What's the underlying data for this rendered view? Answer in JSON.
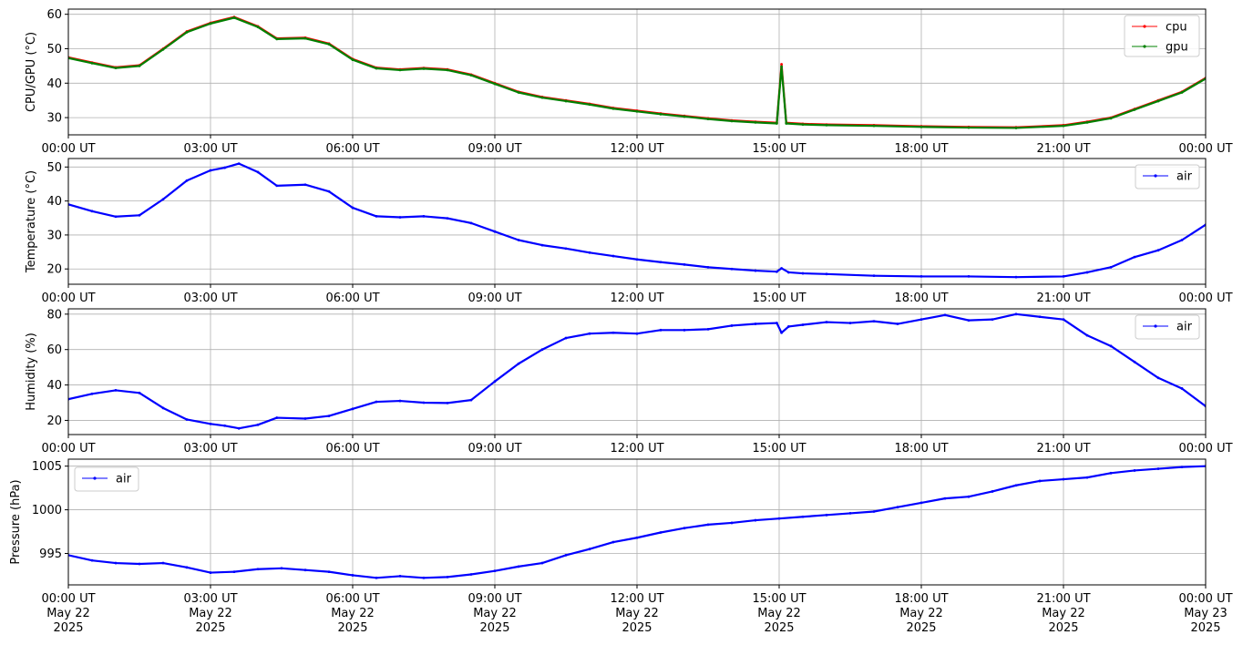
{
  "chart_data": [
    {
      "type": "line",
      "ylabel": "CPU/GPU (°C)",
      "ylim": [
        25,
        61.5
      ],
      "yticks": [
        30,
        40,
        50,
        60
      ],
      "legend": "top-right",
      "grid": true,
      "xticks": [
        "00:00 UT",
        "03:00 UT",
        "06:00 UT",
        "09:00 UT",
        "12:00 UT",
        "15:00 UT",
        "18:00 UT",
        "21:00 UT",
        "00:00 UT"
      ],
      "series": [
        {
          "name": "cpu",
          "color": "#ff0000",
          "points": [
            [
              0,
              47.5
            ],
            [
              0.5,
              46
            ],
            [
              1,
              44.6
            ],
            [
              1.5,
              45.2
            ],
            [
              2,
              50
            ],
            [
              2.5,
              55
            ],
            [
              3,
              57.5
            ],
            [
              3.5,
              59.2
            ],
            [
              4,
              56.5
            ],
            [
              4.4,
              53
            ],
            [
              5,
              53.2
            ],
            [
              5.5,
              51.5
            ],
            [
              6,
              47
            ],
            [
              6.5,
              44.5
            ],
            [
              7,
              44
            ],
            [
              7.5,
              44.4
            ],
            [
              8,
              44
            ],
            [
              8.5,
              42.5
            ],
            [
              9,
              40
            ],
            [
              9.5,
              37.5
            ],
            [
              10,
              36
            ],
            [
              10.5,
              35
            ],
            [
              11,
              34
            ],
            [
              11.5,
              32.8
            ],
            [
              12,
              32
            ],
            [
              12.5,
              31.2
            ],
            [
              13,
              30.5
            ],
            [
              13.5,
              29.8
            ],
            [
              14,
              29.2
            ],
            [
              14.5,
              28.8
            ],
            [
              14.95,
              28.5
            ],
            [
              15.05,
              45.5
            ],
            [
              15.15,
              28.5
            ],
            [
              15.5,
              28.2
            ],
            [
              16,
              28
            ],
            [
              17,
              27.8
            ],
            [
              18,
              27.5
            ],
            [
              19,
              27.3
            ],
            [
              20,
              27.2
            ],
            [
              21,
              27.8
            ],
            [
              21.5,
              28.8
            ],
            [
              22,
              30
            ],
            [
              22.5,
              32.5
            ],
            [
              23,
              35
            ],
            [
              23.5,
              37.5
            ],
            [
              24,
              41.5
            ]
          ]
        },
        {
          "name": "gpu",
          "color": "#008000",
          "points": [
            [
              0,
              47.3
            ],
            [
              0.5,
              45.8
            ],
            [
              1,
              44.4
            ],
            [
              1.5,
              45
            ],
            [
              2,
              49.8
            ],
            [
              2.5,
              54.8
            ],
            [
              3,
              57.3
            ],
            [
              3.5,
              59
            ],
            [
              4,
              56.3
            ],
            [
              4.4,
              52.8
            ],
            [
              5,
              53
            ],
            [
              5.5,
              51.3
            ],
            [
              6,
              46.8
            ],
            [
              6.5,
              44.3
            ],
            [
              7,
              43.8
            ],
            [
              7.5,
              44.2
            ],
            [
              8,
              43.8
            ],
            [
              8.5,
              42.3
            ],
            [
              9,
              39.8
            ],
            [
              9.5,
              37.3
            ],
            [
              10,
              35.8
            ],
            [
              10.5,
              34.8
            ],
            [
              11,
              33.8
            ],
            [
              11.5,
              32.6
            ],
            [
              12,
              31.8
            ],
            [
              12.5,
              31
            ],
            [
              13,
              30.3
            ],
            [
              13.5,
              29.6
            ],
            [
              14,
              29
            ],
            [
              14.5,
              28.6
            ],
            [
              14.95,
              28.3
            ],
            [
              15.05,
              44.8
            ],
            [
              15.15,
              28.3
            ],
            [
              15.5,
              28
            ],
            [
              16,
              27.8
            ],
            [
              17,
              27.6
            ],
            [
              18,
              27.3
            ],
            [
              19,
              27.1
            ],
            [
              20,
              27
            ],
            [
              21,
              27.6
            ],
            [
              21.5,
              28.6
            ],
            [
              22,
              29.8
            ],
            [
              22.5,
              32.3
            ],
            [
              23,
              34.8
            ],
            [
              23.5,
              37.3
            ],
            [
              24,
              41.3
            ]
          ]
        }
      ]
    },
    {
      "type": "line",
      "ylabel": "Temperature (°C)",
      "ylim": [
        15.5,
        52.5
      ],
      "yticks": [
        20,
        30,
        40,
        50
      ],
      "legend": "top-right",
      "grid": true,
      "xticks": [
        "00:00 UT",
        "03:00 UT",
        "06:00 UT",
        "09:00 UT",
        "12:00 UT",
        "15:00 UT",
        "18:00 UT",
        "21:00 UT",
        "00:00 UT"
      ],
      "series": [
        {
          "name": "air",
          "color": "#0000ff",
          "points": [
            [
              0,
              39
            ],
            [
              0.5,
              37
            ],
            [
              1,
              35.4
            ],
            [
              1.5,
              35.8
            ],
            [
              2,
              40.5
            ],
            [
              2.5,
              46
            ],
            [
              3,
              49
            ],
            [
              3.3,
              49.8
            ],
            [
              3.6,
              51
            ],
            [
              4,
              48.5
            ],
            [
              4.4,
              44.5
            ],
            [
              5,
              44.8
            ],
            [
              5.5,
              42.8
            ],
            [
              6,
              38
            ],
            [
              6.5,
              35.5
            ],
            [
              7,
              35.2
            ],
            [
              7.5,
              35.5
            ],
            [
              8,
              34.9
            ],
            [
              8.5,
              33.5
            ],
            [
              9,
              31
            ],
            [
              9.5,
              28.5
            ],
            [
              10,
              27
            ],
            [
              10.5,
              26
            ],
            [
              11,
              24.8
            ],
            [
              11.5,
              23.8
            ],
            [
              12,
              22.8
            ],
            [
              12.5,
              22
            ],
            [
              13,
              21.3
            ],
            [
              13.5,
              20.5
            ],
            [
              14,
              20
            ],
            [
              14.5,
              19.5
            ],
            [
              14.95,
              19.2
            ],
            [
              15.05,
              20.2
            ],
            [
              15.2,
              19
            ],
            [
              15.5,
              18.7
            ],
            [
              16,
              18.5
            ],
            [
              17,
              18
            ],
            [
              18,
              17.8
            ],
            [
              19,
              17.8
            ],
            [
              20,
              17.6
            ],
            [
              21,
              17.8
            ],
            [
              21.5,
              19
            ],
            [
              22,
              20.5
            ],
            [
              22.5,
              23.5
            ],
            [
              23,
              25.5
            ],
            [
              23.5,
              28.5
            ],
            [
              24,
              33
            ]
          ]
        }
      ]
    },
    {
      "type": "line",
      "ylabel": "Humidity (%)",
      "ylim": [
        12,
        83
      ],
      "yticks": [
        20,
        40,
        60,
        80
      ],
      "legend": "top-right",
      "grid": true,
      "xticks": [
        "00:00 UT",
        "03:00 UT",
        "06:00 UT",
        "09:00 UT",
        "12:00 UT",
        "15:00 UT",
        "18:00 UT",
        "21:00 UT",
        "00:00 UT"
      ],
      "series": [
        {
          "name": "air",
          "color": "#0000ff",
          "points": [
            [
              0,
              32
            ],
            [
              0.5,
              35
            ],
            [
              1,
              37
            ],
            [
              1.5,
              35.5
            ],
            [
              2,
              27
            ],
            [
              2.5,
              20.5
            ],
            [
              3,
              18
            ],
            [
              3.3,
              17
            ],
            [
              3.6,
              15.5
            ],
            [
              4,
              17.5
            ],
            [
              4.4,
              21.5
            ],
            [
              5,
              21
            ],
            [
              5.5,
              22.5
            ],
            [
              6,
              26.5
            ],
            [
              6.5,
              30.5
            ],
            [
              7,
              31
            ],
            [
              7.5,
              30
            ],
            [
              8,
              29.8
            ],
            [
              8.5,
              31.5
            ],
            [
              9,
              42
            ],
            [
              9.5,
              52
            ],
            [
              10,
              60
            ],
            [
              10.5,
              66.5
            ],
            [
              11,
              69
            ],
            [
              11.5,
              69.5
            ],
            [
              12,
              69
            ],
            [
              12.5,
              71
            ],
            [
              13,
              71
            ],
            [
              13.5,
              71.5
            ],
            [
              14,
              73.5
            ],
            [
              14.5,
              74.5
            ],
            [
              14.95,
              75
            ],
            [
              15.05,
              69.5
            ],
            [
              15.2,
              73
            ],
            [
              15.5,
              74
            ],
            [
              16,
              75.5
            ],
            [
              16.5,
              75
            ],
            [
              17,
              76
            ],
            [
              17.5,
              74.5
            ],
            [
              18,
              77
            ],
            [
              18.5,
              79.5
            ],
            [
              19,
              76.5
            ],
            [
              19.5,
              77
            ],
            [
              20,
              80
            ],
            [
              20.5,
              78.5
            ],
            [
              21,
              77
            ],
            [
              21.5,
              68
            ],
            [
              22,
              62
            ],
            [
              22.5,
              53
            ],
            [
              23,
              44
            ],
            [
              23.5,
              38
            ],
            [
              24,
              28
            ]
          ]
        }
      ]
    },
    {
      "type": "line",
      "ylabel": "Pressure (hPa)",
      "ylim": [
        991.4,
        1005.8
      ],
      "yticks": [
        995,
        1000,
        1005
      ],
      "legend": "top-left",
      "grid": true,
      "xticks": [
        "00:00 UT\nMay 22\n2025",
        "03:00 UT\nMay 22\n2025",
        "06:00 UT\nMay 22\n2025",
        "09:00 UT\nMay 22\n2025",
        "12:00 UT\nMay 22\n2025",
        "15:00 UT\nMay 22\n2025",
        "18:00 UT\nMay 22\n2025",
        "21:00 UT\nMay 22\n2025",
        "00:00 UT\nMay 23\n2025"
      ],
      "series": [
        {
          "name": "air",
          "color": "#0000ff",
          "points": [
            [
              0,
              994.8
            ],
            [
              0.5,
              994.2
            ],
            [
              1,
              993.9
            ],
            [
              1.5,
              993.8
            ],
            [
              2,
              993.9
            ],
            [
              2.5,
              993.4
            ],
            [
              3,
              992.8
            ],
            [
              3.5,
              992.9
            ],
            [
              4,
              993.2
            ],
            [
              4.5,
              993.3
            ],
            [
              5,
              993.1
            ],
            [
              5.5,
              992.9
            ],
            [
              6,
              992.5
            ],
            [
              6.5,
              992.2
            ],
            [
              7,
              992.4
            ],
            [
              7.5,
              992.2
            ],
            [
              8,
              992.3
            ],
            [
              8.5,
              992.6
            ],
            [
              9,
              993
            ],
            [
              9.5,
              993.5
            ],
            [
              10,
              993.9
            ],
            [
              10.5,
              994.8
            ],
            [
              11,
              995.5
            ],
            [
              11.5,
              996.3
            ],
            [
              12,
              996.8
            ],
            [
              12.5,
              997.4
            ],
            [
              13,
              997.9
            ],
            [
              13.5,
              998.3
            ],
            [
              14,
              998.5
            ],
            [
              14.5,
              998.8
            ],
            [
              15,
              999
            ],
            [
              15.5,
              999.2
            ],
            [
              16,
              999.4
            ],
            [
              16.5,
              999.6
            ],
            [
              17,
              999.8
            ],
            [
              17.5,
              1000.3
            ],
            [
              18,
              1000.8
            ],
            [
              18.5,
              1001.3
            ],
            [
              19,
              1001.5
            ],
            [
              19.5,
              1002.1
            ],
            [
              20,
              1002.8
            ],
            [
              20.5,
              1003.3
            ],
            [
              21,
              1003.5
            ],
            [
              21.5,
              1003.7
            ],
            [
              22,
              1004.2
            ],
            [
              22.5,
              1004.5
            ],
            [
              23,
              1004.7
            ],
            [
              23.5,
              1004.9
            ],
            [
              24,
              1005
            ]
          ]
        }
      ]
    }
  ]
}
